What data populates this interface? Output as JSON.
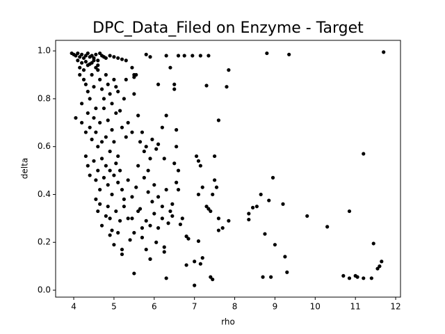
{
  "chart_data": {
    "type": "scatter",
    "title": "DPC_Data_Filed on Enzyme - Target",
    "xlabel": "rho",
    "ylabel": "delta",
    "color": "#000000",
    "x": [
      3.95,
      4.0,
      4.05,
      4.1,
      4.15,
      4.2,
      4.25,
      4.3,
      4.35,
      4.4,
      4.45,
      4.5,
      4.55,
      4.6,
      4.65,
      4.7,
      4.75,
      4.1,
      4.2,
      4.3,
      4.4,
      4.5,
      4.6,
      4.15,
      4.25,
      4.35,
      4.45,
      4.55,
      4.8,
      4.9,
      5.0,
      5.1,
      5.2,
      5.3,
      5.45,
      5.5,
      5.8,
      5.9,
      4.05,
      4.2,
      4.15,
      4.25,
      4.3,
      4.35,
      4.4,
      4.45,
      4.5,
      4.55,
      4.6,
      4.65,
      4.7,
      4.75,
      4.8,
      4.85,
      4.9,
      4.95,
      5.0,
      5.05,
      5.1,
      5.15,
      5.25,
      5.3,
      5.5,
      5.5,
      5.55,
      6.1,
      6.1,
      6.3,
      4.2,
      4.3,
      4.35,
      4.4,
      4.45,
      4.5,
      4.55,
      4.6,
      4.65,
      4.7,
      4.75,
      4.8,
      4.85,
      4.9,
      4.95,
      5.0,
      5.05,
      5.1,
      5.2,
      5.3,
      5.35,
      5.45,
      5.6,
      5.65,
      5.7,
      5.8,
      5.9,
      5.6,
      5.75,
      5.85,
      5.95,
      6.05,
      6.2,
      6.25,
      6.5,
      4.3,
      4.35,
      4.4,
      4.5,
      4.55,
      4.6,
      4.65,
      4.7,
      4.75,
      4.8,
      4.85,
      4.9,
      4.95,
      5.0,
      5.05,
      5.1,
      5.15,
      5.2,
      5.25,
      5.35,
      5.45,
      5.55,
      5.65,
      5.75,
      5.85,
      5.95,
      6.0,
      6.1,
      6.2,
      6.3,
      6.4,
      4.55,
      4.6,
      4.65,
      4.7,
      4.8,
      4.85,
      4.9,
      4.95,
      5.05,
      5.15,
      5.25,
      5.35,
      5.45,
      5.6,
      5.7,
      5.8,
      5.9,
      6.0,
      6.1,
      6.2,
      6.35,
      6.45,
      4.9,
      5.0,
      5.1,
      5.2,
      5.4,
      5.5,
      5.7,
      5.8,
      5.9,
      6.05,
      6.25,
      5.2,
      5.5,
      5.9,
      8.8,
      9.35,
      11.7,
      11.2,
      8.95,
      9.8,
      10.3,
      10.85,
      11.45,
      11.65,
      11.6,
      11.55,
      10.7,
      10.85,
      11.0,
      11.05,
      11.2,
      11.4,
      9.3,
      8.9,
      8.7,
      9.25,
      9.2,
      9.0,
      8.75,
      8.85,
      8.65,
      8.55,
      8.45,
      8.35,
      8.35,
      7.85,
      7.8,
      7.6,
      7.85,
      7.7,
      7.6,
      7.6,
      7.55,
      7.5,
      7.5,
      7.35,
      7.15,
      6.95,
      6.75,
      6.6,
      6.3,
      6.4,
      6.5,
      6.5,
      7.3,
      7.15,
      7.05,
      7.1,
      7.2,
      7.1,
      7.3,
      7.35,
      7.4,
      7.45,
      7.0,
      7.4,
      7.45,
      7.2,
      7.15,
      7.0,
      6.8,
      7.1,
      6.85,
      6.8,
      6.55,
      6.55,
      6.6,
      6.55,
      6.6,
      6.7,
      6.65,
      6.45,
      6.3,
      6.25
    ],
    "values": [
      0.99,
      0.985,
      0.98,
      0.99,
      0.975,
      0.985,
      0.97,
      0.98,
      0.99,
      0.975,
      0.98,
      0.97,
      0.985,
      0.96,
      0.99,
      0.98,
      0.975,
      0.96,
      0.95,
      0.955,
      0.945,
      0.96,
      0.94,
      0.93,
      0.92,
      0.94,
      0.95,
      0.93,
      0.97,
      0.98,
      0.975,
      0.97,
      0.965,
      0.96,
      0.93,
      0.9,
      0.985,
      0.975,
      0.72,
      0.78,
      0.9,
      0.88,
      0.86,
      0.83,
      0.8,
      0.9,
      0.85,
      0.76,
      0.92,
      0.88,
      0.84,
      0.8,
      0.9,
      0.86,
      0.82,
      0.78,
      0.88,
      0.85,
      0.83,
      0.75,
      0.8,
      0.88,
      0.89,
      0.82,
      0.9,
      0.86,
      0.61,
      0.73,
      0.7,
      0.66,
      0.74,
      0.68,
      0.63,
      0.72,
      0.66,
      0.6,
      0.7,
      0.62,
      0.76,
      0.64,
      0.71,
      0.58,
      0.67,
      0.62,
      0.74,
      0.56,
      0.68,
      0.64,
      0.7,
      0.66,
      0.73,
      0.62,
      0.66,
      0.6,
      0.55,
      0.52,
      0.58,
      0.5,
      0.63,
      0.59,
      0.68,
      0.55,
      0.53,
      0.56,
      0.52,
      0.48,
      0.54,
      0.46,
      0.5,
      0.42,
      0.55,
      0.47,
      0.52,
      0.44,
      0.5,
      0.4,
      0.48,
      0.53,
      0.45,
      0.5,
      0.42,
      0.38,
      0.46,
      0.39,
      0.43,
      0.34,
      0.47,
      0.41,
      0.37,
      0.44,
      0.39,
      0.35,
      0.42,
      0.33,
      0.38,
      0.33,
      0.36,
      0.27,
      0.31,
      0.35,
      0.3,
      0.25,
      0.33,
      0.29,
      0.35,
      0.3,
      0.3,
      0.33,
      0.26,
      0.29,
      0.27,
      0.32,
      0.26,
      0.3,
      0.28,
      0.31,
      0.23,
      0.19,
      0.24,
      0.17,
      0.21,
      0.24,
      0.22,
      0.17,
      0.13,
      0.2,
      0.16,
      0.15,
      0.07,
      0.13,
      0.99,
      0.985,
      0.995,
      0.57,
      0.47,
      0.31,
      0.265,
      0.33,
      0.195,
      0.12,
      0.1,
      0.09,
      0.06,
      0.05,
      0.06,
      0.055,
      0.05,
      0.05,
      0.075,
      0.055,
      0.055,
      0.14,
      0.36,
      0.19,
      0.235,
      0.375,
      0.4,
      0.35,
      0.345,
      0.32,
      0.295,
      0.92,
      0.85,
      0.71,
      0.29,
      0.26,
      0.25,
      0.3,
      0.43,
      0.46,
      0.56,
      0.98,
      0.98,
      0.98,
      0.98,
      0.98,
      0.98,
      0.93,
      0.86,
      0.84,
      0.855,
      0.52,
      0.56,
      0.54,
      0.43,
      0.4,
      0.35,
      0.34,
      0.33,
      0.4,
      0.02,
      0.055,
      0.045,
      0.135,
      0.11,
      0.12,
      0.105,
      0.205,
      0.215,
      0.225,
      0.67,
      0.6,
      0.5,
      0.45,
      0.42,
      0.3,
      0.275,
      0.36,
      0.05,
      0.18
    ],
    "xlim": [
      3.55,
      12.12
    ],
    "ylim": [
      -0.029,
      1.044
    ],
    "xticks": [
      4,
      5,
      6,
      7,
      8,
      9,
      10,
      11,
      12
    ],
    "yticks": [
      {
        "value": 0,
        "label": "0.0"
      },
      {
        "value": 0.2,
        "label": "0.2"
      },
      {
        "value": 0.4,
        "label": "0.4"
      },
      {
        "value": 0.6,
        "label": "0.6"
      },
      {
        "value": 0.8,
        "label": "0.8"
      },
      {
        "value": 1,
        "label": "1.0"
      }
    ],
    "grid": false
  }
}
